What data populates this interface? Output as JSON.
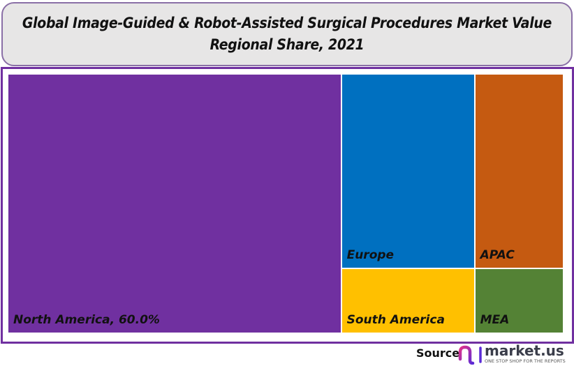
{
  "chart_data": {
    "type": "treemap",
    "title_line1": "Global Image-Guided & Robot-Assisted Surgical Procedures Market Value",
    "title_line2": "Regional Share, 2021",
    "unit": "%",
    "tiles": [
      {
        "name": "North America",
        "label": "North America, 60.0%",
        "value": 60.0,
        "color": "#7030A0"
      },
      {
        "name": "Europe",
        "label": "Europe",
        "value": 18.0,
        "color": "#0070C0"
      },
      {
        "name": "South America",
        "label": "South America",
        "value": 6.0,
        "color": "#FFC000"
      },
      {
        "name": "APAC",
        "label": "APAC",
        "value": 12.0,
        "color": "#C55A11"
      },
      {
        "name": "MEA",
        "label": "MEA",
        "value": 4.0,
        "color": "#548235"
      }
    ]
  },
  "footer": {
    "source_label": "Source",
    "logo_text": "market.us",
    "logo_tagline": "ONE STOP SHOP FOR THE REPORTS"
  }
}
